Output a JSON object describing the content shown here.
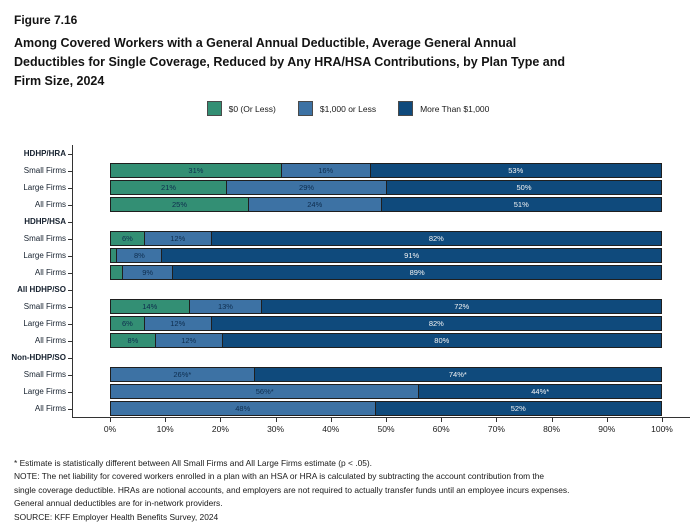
{
  "header": {
    "figure_label": "Figure 7.16",
    "title_lines": [
      "Among Covered Workers with a General Annual Deductible, Average General Annual",
      "Deductibles for Single Coverage, Reduced by Any HRA/HSA Contributions, by Plan Type and",
      "Firm Size, 2024"
    ]
  },
  "colors": {
    "green": "#338f74",
    "mid_blue": "#3d72a4",
    "dark_blue": "#0f4a7c",
    "bar_border": "#1f1f1f",
    "value_label_dark": "#0e2d4e",
    "value_label_light": "#f5f5f5",
    "axis": "#333333"
  },
  "chart_data": {
    "type": "bar",
    "stacked": true,
    "orientation": "horizontal",
    "title": "Among Covered Workers with a General Annual Deductible, Average General Annual Deductibles for Single Coverage, Reduced by Any HRA/HSA Contributions, by Plan Type and Firm Size, 2024",
    "legend_position": "top",
    "legend": [
      {
        "label": "$0 (Or Less)",
        "color": "#338f74"
      },
      {
        "label": "$1,000 or Less",
        "color": "#3d72a4"
      },
      {
        "label": "More Than $1,000",
        "color": "#0f4a7c"
      }
    ],
    "xlim": [
      0,
      100
    ],
    "x_tick_labels": [
      "0%",
      "10%",
      "20%",
      "30%",
      "40%",
      "50%",
      "60%",
      "70%",
      "80%",
      "90%",
      "100%"
    ],
    "grid": false,
    "groups": [
      {
        "label": "HDHP/HRA",
        "rows": [
          {
            "label": "Small Firms",
            "segments": [
              {
                "value": 31,
                "label": "31%"
              },
              {
                "value": 16,
                "label": "16%"
              },
              {
                "value": 53,
                "label": "53%"
              }
            ]
          },
          {
            "label": "Large Firms",
            "segments": [
              {
                "value": 21,
                "label": "21%"
              },
              {
                "value": 29,
                "label": "29%"
              },
              {
                "value": 50,
                "label": "50%"
              }
            ]
          },
          {
            "label": "All Firms",
            "segments": [
              {
                "value": 25,
                "label": "25%"
              },
              {
                "value": 24,
                "label": "24%"
              },
              {
                "value": 51,
                "label": "51%"
              }
            ]
          }
        ]
      },
      {
        "label": "HDHP/HSA",
        "rows": [
          {
            "label": "Small Firms",
            "segments": [
              {
                "value": 6,
                "label": "6%"
              },
              {
                "value": 12,
                "label": "12%"
              },
              {
                "value": 82,
                "label": "82%"
              }
            ]
          },
          {
            "label": "Large Firms",
            "segments": [
              {
                "value": 1,
                "label": ""
              },
              {
                "value": 8,
                "label": "8%"
              },
              {
                "value": 91,
                "label": "91%"
              }
            ]
          },
          {
            "label": "All Firms",
            "segments": [
              {
                "value": 2,
                "label": ""
              },
              {
                "value": 9,
                "label": "9%"
              },
              {
                "value": 89,
                "label": "89%"
              }
            ]
          }
        ]
      },
      {
        "label": "All HDHP/SO",
        "rows": [
          {
            "label": "Small Firms",
            "segments": [
              {
                "value": 14,
                "label": "14%"
              },
              {
                "value": 13,
                "label": "13%"
              },
              {
                "value": 72,
                "label": "72%"
              }
            ]
          },
          {
            "label": "Large Firms",
            "segments": [
              {
                "value": 6,
                "label": "6%"
              },
              {
                "value": 12,
                "label": "12%"
              },
              {
                "value": 82,
                "label": "82%"
              }
            ]
          },
          {
            "label": "All Firms",
            "segments": [
              {
                "value": 8,
                "label": "8%"
              },
              {
                "value": 12,
                "label": "12%"
              },
              {
                "value": 80,
                "label": "80%"
              }
            ]
          }
        ]
      },
      {
        "label": "Non-HDHP/SO",
        "rows": [
          {
            "label": "Small Firms",
            "segments": [
              {
                "value": 0,
                "label": ""
              },
              {
                "value": 26,
                "label": "26%*"
              },
              {
                "value": 74,
                "label": "74%*"
              }
            ]
          },
          {
            "label": "Large Firms",
            "segments": [
              {
                "value": 0,
                "label": ""
              },
              {
                "value": 56,
                "label": "56%*"
              },
              {
                "value": 44,
                "label": "44%*"
              }
            ]
          },
          {
            "label": "All Firms",
            "segments": [
              {
                "value": 0,
                "label": ""
              },
              {
                "value": 48,
                "label": "48%"
              },
              {
                "value": 52,
                "label": "52%"
              }
            ]
          }
        ]
      }
    ]
  },
  "footnotes": {
    "lines": [
      "* Estimate is statistically different between All Small Firms and All Large Firms estimate (p < .05).",
      "NOTE: The net liability for covered workers enrolled in a plan with an HSA or HRA is calculated by subtracting the account contribution from the",
      "single coverage deductible. HRAs are notional accounts, and employers are not required to actually transfer funds until an employee incurs expenses.",
      "General annual deductibles are for in-network providers.",
      "SOURCE: KFF Employer Health Benefits Survey, 2024"
    ]
  }
}
